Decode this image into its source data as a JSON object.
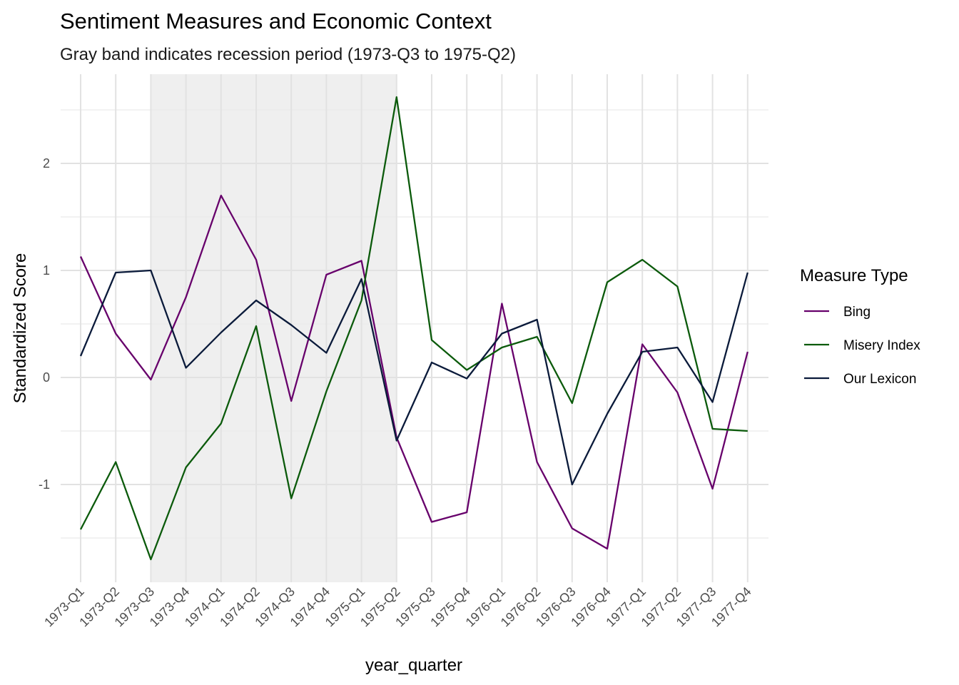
{
  "chart_data": {
    "type": "line",
    "title": "Sentiment Measures and Economic Context",
    "subtitle": "Gray band indicates recession period (1973-Q3 to 1975-Q2)",
    "xlabel": "year_quarter",
    "ylabel": "Standardized Score",
    "categories": [
      "1973-Q1",
      "1973-Q2",
      "1973-Q3",
      "1973-Q4",
      "1974-Q1",
      "1974-Q2",
      "1974-Q3",
      "1974-Q4",
      "1975-Q1",
      "1975-Q2",
      "1975-Q3",
      "1975-Q4",
      "1976-Q1",
      "1976-Q2",
      "1976-Q3",
      "1976-Q4",
      "1977-Q1",
      "1977-Q2",
      "1977-Q3",
      "1977-Q4"
    ],
    "ylim": [
      -1.92,
      2.62
    ],
    "yticks": [
      -1,
      0,
      1,
      2
    ],
    "grid": true,
    "recession_band": {
      "start": "1973-Q3",
      "end": "1975-Q2",
      "color": "#efefef"
    },
    "legend": {
      "title": "Measure Type",
      "position": "right"
    },
    "series": [
      {
        "name": "Bing",
        "color": "#67006b",
        "values": [
          1.13,
          0.41,
          -0.02,
          0.75,
          1.7,
          1.1,
          -0.22,
          0.96,
          1.09,
          -0.56,
          -1.35,
          -1.26,
          0.69,
          -0.79,
          -1.41,
          -1.6,
          0.31,
          -0.14,
          -1.04,
          0.24
        ]
      },
      {
        "name": "Misery Index",
        "color": "#0b5a0b",
        "values": [
          -1.42,
          -0.79,
          -1.7,
          -0.84,
          -0.43,
          0.48,
          -1.13,
          -0.13,
          0.72,
          2.62,
          0.35,
          0.07,
          0.28,
          0.38,
          -0.24,
          0.89,
          1.1,
          0.85,
          -0.48,
          -0.5
        ]
      },
      {
        "name": "Our Lexicon",
        "color": "#0a1a3a",
        "values": [
          0.2,
          0.98,
          1.0,
          0.09,
          0.42,
          0.72,
          0.49,
          0.23,
          0.92,
          -0.59,
          0.14,
          -0.01,
          0.41,
          0.54,
          -1.0,
          -0.34,
          0.24,
          0.28,
          -0.23,
          0.98
        ]
      }
    ]
  }
}
